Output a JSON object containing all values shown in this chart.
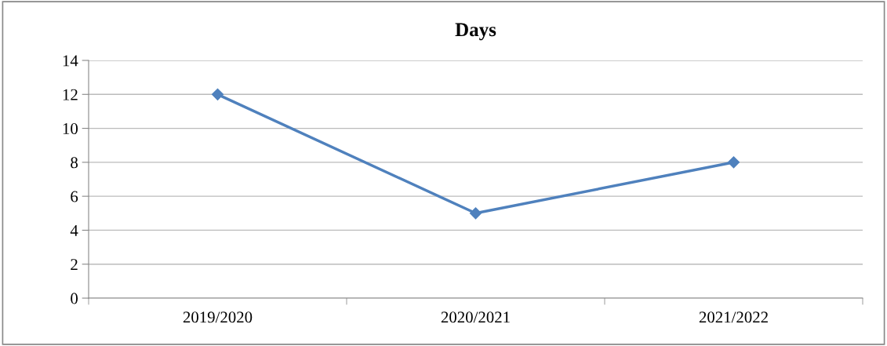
{
  "chart_data": {
    "type": "line",
    "title": "Days",
    "categories": [
      "2019/2020",
      "2020/2021",
      "2021/2022"
    ],
    "series": [
      {
        "color": "#4f81bd",
        "values": [
          12,
          5,
          8
        ]
      }
    ],
    "ylim": [
      0,
      14
    ],
    "yticks": [
      0,
      2,
      4,
      6,
      8,
      10,
      12,
      14
    ],
    "grid": "y",
    "marker": "diamond",
    "line_style": "solid"
  }
}
